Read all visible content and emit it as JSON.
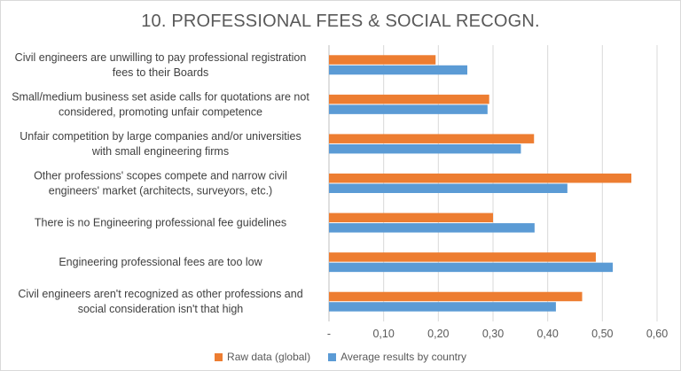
{
  "chart_data": {
    "type": "bar",
    "orientation": "horizontal",
    "title": "10. PROFESSIONAL FEES & SOCIAL RECOGN.",
    "categories": [
      [
        "Civil engineers are unwilling to pay professional registration",
        "fees to their Boards"
      ],
      [
        "Small/medium business set aside calls for quotations are not",
        "considered, promoting unfair competence"
      ],
      [
        "Unfair competition by large companies and/or universities",
        "with small engineering firms"
      ],
      [
        "Other professions' scopes compete and narrow civil",
        "engineers' market (architects, surveyors, etc.)"
      ],
      [
        "There is no Engineering professional fee guidelines"
      ],
      [
        "Engineering professional fees are too low"
      ],
      [
        "Civil engineers aren't recognized as other professions and",
        "social consideration isn't that high"
      ]
    ],
    "series": [
      {
        "name": "Raw data (global)",
        "color": "#ed7d31",
        "values": [
          0.195,
          0.293,
          0.375,
          0.553,
          0.3,
          0.488,
          0.463
        ]
      },
      {
        "name": "Average results by country",
        "color": "#5b9bd5",
        "values": [
          0.253,
          0.29,
          0.351,
          0.436,
          0.376,
          0.519,
          0.415
        ]
      }
    ],
    "xlim": [
      0,
      0.6
    ],
    "xticks": [
      0,
      0.1,
      0.2,
      0.3,
      0.4,
      0.5,
      0.6
    ],
    "xtick_labels": [
      "-",
      "0,10",
      "0,20",
      "0,30",
      "0,40",
      "0,50",
      "0,60"
    ],
    "grid": "vertical",
    "legend_position": "bottom"
  }
}
